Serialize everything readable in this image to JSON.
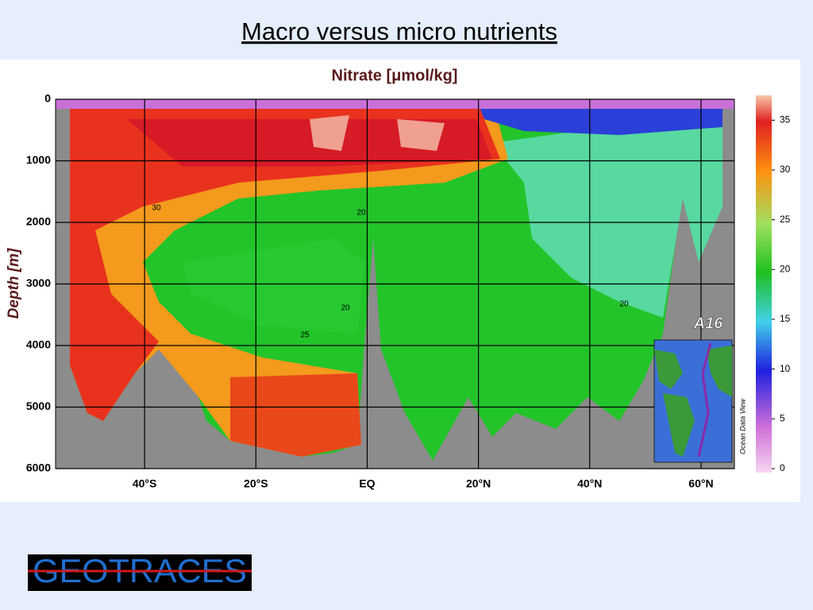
{
  "slide_title": "Macro versus micro nutrients",
  "chart_data": {
    "type": "contour",
    "title": "Nitrate [μmol/kg]",
    "y_label": "Depth [m]",
    "xlim": [
      -56,
      66
    ],
    "xticks": [
      {
        "value": -40,
        "label": "40°S"
      },
      {
        "value": -20,
        "label": "20°S"
      },
      {
        "value": 0,
        "label": "EQ"
      },
      {
        "value": 20,
        "label": "20°N"
      },
      {
        "value": 40,
        "label": "40°N"
      },
      {
        "value": 60,
        "label": "60°N"
      }
    ],
    "ylim": [
      0,
      6000
    ],
    "yticks": [
      0,
      1000,
      2000,
      3000,
      4000,
      5000,
      6000
    ],
    "y_inverted": true,
    "clim": [
      0,
      37.5
    ],
    "cticks": [
      0,
      5,
      10,
      15,
      20,
      25,
      30,
      35
    ],
    "grid": true,
    "annotations": [
      "30",
      "20",
      "20",
      "20",
      "25"
    ],
    "inset_label": "A16",
    "credit": "Ocean Data View"
  },
  "logo": "GEOTRACES"
}
